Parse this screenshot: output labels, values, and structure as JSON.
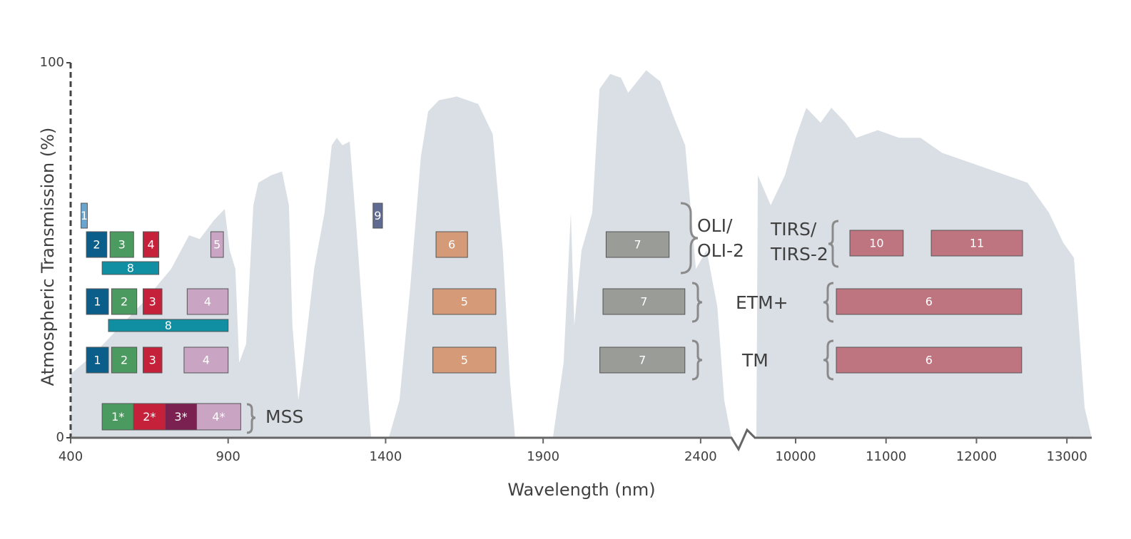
{
  "chart_data": {
    "type": "area",
    "x_label": "Wavelength (nm)",
    "y_label": "Atmospheric Transmission (%)",
    "ylim": [
      0,
      100
    ],
    "yticks": [
      0,
      100
    ],
    "color": "#d9dfe4",
    "segments": [
      {
        "xlim": [
          400,
          2500
        ],
        "xticks": [
          400,
          900,
          1400,
          1900,
          2400
        ],
        "x": [
          400,
          470,
          538,
          629,
          719,
          776,
          810,
          855,
          889,
          905,
          923,
          935,
          957,
          980,
          996,
          1037,
          1071,
          1093,
          1104,
          1123,
          1139,
          1173,
          1206,
          1229,
          1245,
          1263,
          1286,
          1308,
          1331,
          1349,
          1354,
          1410,
          1444,
          1478,
          1512,
          1535,
          1569,
          1626,
          1694,
          1740,
          1772,
          1795,
          1811,
          1931,
          1965,
          1988,
          1999,
          2022,
          2056,
          2079,
          2113,
          2147,
          2170,
          2227,
          2272,
          2317,
          2351,
          2385,
          2419,
          2453,
          2475,
          2498
        ],
        "values": [
          17,
          22,
          28,
          36,
          45,
          54,
          53,
          58,
          61,
          50,
          45,
          20,
          25,
          62,
          68,
          70,
          71,
          62,
          30,
          10,
          20,
          45,
          60,
          78,
          80,
          78,
          79,
          55,
          28,
          5,
          0,
          0,
          10,
          40,
          75,
          87,
          90,
          91,
          89,
          81,
          50,
          15,
          0,
          0,
          20,
          60,
          30,
          50,
          60,
          93,
          97,
          96,
          92,
          98,
          95,
          85,
          78,
          45,
          50,
          35,
          10,
          0
        ]
      },
      {
        "xlim": [
          9566,
          13275
        ],
        "xticks": [
          10000,
          11000,
          12000,
          13000
        ],
        "x": [
          9566,
          9582,
          9724,
          9882,
          10000,
          10118,
          10276,
          10395,
          10552,
          10671,
          10908,
          11144,
          11381,
          11618,
          11855,
          12092,
          12328,
          12565,
          12802,
          12960,
          13078,
          13196,
          13275
        ],
        "values": [
          0,
          70,
          62,
          70,
          80,
          88,
          84,
          88,
          84,
          80,
          82,
          80,
          80,
          76,
          74,
          72,
          70,
          68,
          60,
          52,
          48,
          8,
          0
        ]
      }
    ],
    "sensors": [
      {
        "label": [
          "OLI/",
          "OLI-2"
        ],
        "rows": [
          [
            {
              "label": "1",
              "range": [
                433,
                453
              ],
              "color": "#6aa5cf"
            },
            {
              "label": "9",
              "range": [
                1360,
                1390
              ],
              "color": "#5f6b91"
            }
          ],
          [
            {
              "label": "2",
              "range": [
                450,
                515
              ],
              "color": "#0b5e8a"
            },
            {
              "label": "3",
              "range": [
                525,
                600
              ],
              "color": "#4b9a5f"
            },
            {
              "label": "4",
              "range": [
                630,
                680
              ],
              "color": "#c6213b"
            },
            {
              "label": "5",
              "range": [
                845,
                885
              ],
              "color": "#c9a4c3"
            },
            {
              "label": "6",
              "range": [
                1560,
                1660
              ],
              "color": "#d59a78"
            },
            {
              "label": "7",
              "range": [
                2100,
                2300
              ],
              "color": "#999c97"
            }
          ],
          [
            {
              "label": "8",
              "range": [
                500,
                680
              ],
              "color": "#0f8fa1"
            }
          ]
        ]
      },
      {
        "label": [
          "TIRS/",
          "TIRS-2"
        ],
        "rows": [
          [
            {
              "label": "10",
              "range": [
                10600,
                11190
              ],
              "color": "#bf7580"
            },
            {
              "label": "11",
              "range": [
                11500,
                12510
              ],
              "color": "#bf7580"
            }
          ]
        ]
      },
      {
        "label": [
          "ETM+"
        ],
        "rows": [
          [
            {
              "label": "1",
              "range": [
                450,
                520
              ],
              "color": "#0b5e8a"
            },
            {
              "label": "2",
              "range": [
                530,
                610
              ],
              "color": "#4b9a5f"
            },
            {
              "label": "3",
              "range": [
                630,
                690
              ],
              "color": "#c6213b"
            },
            {
              "label": "4",
              "range": [
                770,
                900
              ],
              "color": "#c9a4c3"
            },
            {
              "label": "5",
              "range": [
                1550,
                1750
              ],
              "color": "#d59a78"
            },
            {
              "label": "7",
              "range": [
                2090,
                2350
              ],
              "color": "#999c97"
            },
            {
              "label": "6",
              "range": [
                10450,
                12500
              ],
              "color": "#bf7580"
            }
          ],
          [
            {
              "label": "8",
              "range": [
                520,
                900
              ],
              "color": "#0f8fa1"
            }
          ]
        ]
      },
      {
        "label": [
          "TM"
        ],
        "rows": [
          [
            {
              "label": "1",
              "range": [
                450,
                520
              ],
              "color": "#0b5e8a"
            },
            {
              "label": "2",
              "range": [
                530,
                610
              ],
              "color": "#4b9a5f"
            },
            {
              "label": "3",
              "range": [
                630,
                690
              ],
              "color": "#c6213b"
            },
            {
              "label": "4",
              "range": [
                760,
                900
              ],
              "color": "#c9a4c3"
            },
            {
              "label": "5",
              "range": [
                1550,
                1750
              ],
              "color": "#d59a78"
            },
            {
              "label": "7",
              "range": [
                2080,
                2350
              ],
              "color": "#999c97"
            },
            {
              "label": "6",
              "range": [
                10450,
                12500
              ],
              "color": "#bf7580"
            }
          ]
        ]
      },
      {
        "label": [
          "MSS"
        ],
        "rows": [
          [
            {
              "label": "1*",
              "range": [
                500,
                600
              ],
              "color": "#4b9a5f"
            },
            {
              "label": "2*",
              "range": [
                600,
                700
              ],
              "color": "#c6213b"
            },
            {
              "label": "3*",
              "range": [
                700,
                800
              ],
              "color": "#7b2151"
            },
            {
              "label": "4*",
              "range": [
                800,
                940
              ],
              "color": "#c9a4c3"
            }
          ]
        ]
      }
    ]
  }
}
